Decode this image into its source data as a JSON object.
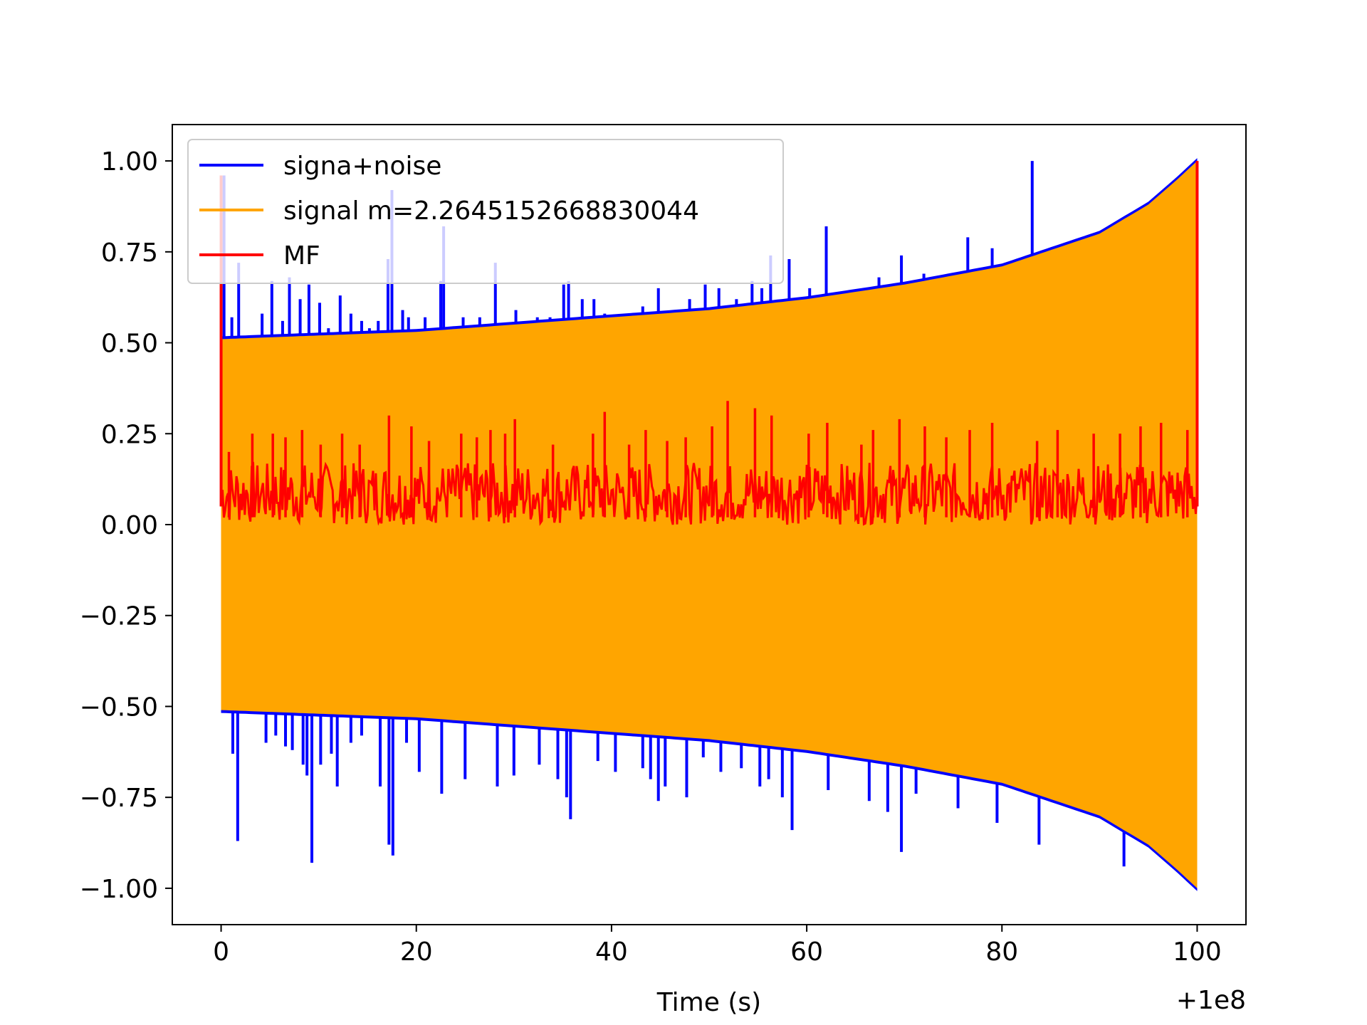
{
  "chart_data": {
    "type": "line",
    "title": "",
    "xlabel": "Time (s)",
    "ylabel": "",
    "x_offset_label": "+1e8",
    "xlim": [
      -5,
      105
    ],
    "ylim": [
      -1.1,
      1.1
    ],
    "x_ticks": [
      0,
      20,
      40,
      60,
      80,
      100
    ],
    "x_tick_labels": [
      "0",
      "20",
      "40",
      "60",
      "80",
      "100"
    ],
    "y_ticks": [
      1.0,
      0.75,
      0.5,
      0.25,
      0.0,
      -0.25,
      -0.5,
      -0.75,
      -1.0
    ],
    "y_tick_labels": [
      "1.00",
      "0.75",
      "0.50",
      "0.25",
      "0.00",
      "−0.25",
      "−0.50",
      "−0.75",
      "−1.00"
    ],
    "grid": false,
    "legend_position": "top-left",
    "series": [
      {
        "name": "signa+noise",
        "color": "#0000ff",
        "envelope_time": [
          0,
          10,
          20,
          30,
          40,
          50,
          60,
          70,
          80,
          90,
          95,
          98,
          100
        ],
        "envelope_upper": [
          0.51,
          0.52,
          0.53,
          0.55,
          0.57,
          0.59,
          0.62,
          0.66,
          0.71,
          0.8,
          0.88,
          0.95,
          1.0
        ],
        "envelope_lower": [
          -0.51,
          -0.52,
          -0.53,
          -0.55,
          -0.57,
          -0.59,
          -0.62,
          -0.66,
          -0.71,
          -0.8,
          -0.88,
          -0.95,
          -1.0
        ],
        "peaks_positive": [
          [
            0.3,
            0.96
          ],
          [
            1.1,
            0.57
          ],
          [
            1.8,
            0.72
          ],
          [
            3.0,
            0.52
          ],
          [
            4.2,
            0.58
          ],
          [
            5.2,
            0.67
          ],
          [
            6.3,
            0.56
          ],
          [
            7.0,
            0.68
          ],
          [
            8.1,
            0.62
          ],
          [
            9.0,
            0.66
          ],
          [
            10.1,
            0.61
          ],
          [
            11.0,
            0.54
          ],
          [
            12.2,
            0.63
          ],
          [
            13.3,
            0.58
          ],
          [
            14.4,
            0.56
          ],
          [
            15.2,
            0.54
          ],
          [
            16.1,
            0.56
          ],
          [
            17.1,
            0.73
          ],
          [
            17.5,
            0.92
          ],
          [
            18.6,
            0.59
          ],
          [
            19.2,
            0.57
          ],
          [
            20.9,
            0.57
          ],
          [
            22.5,
            0.67
          ],
          [
            22.8,
            0.82
          ],
          [
            24.8,
            0.57
          ],
          [
            26.5,
            0.57
          ],
          [
            28.1,
            0.72
          ],
          [
            29.3,
            0.55
          ],
          [
            30.2,
            0.59
          ],
          [
            32.4,
            0.57
          ],
          [
            33.7,
            0.57
          ],
          [
            35.1,
            0.66
          ],
          [
            35.6,
            0.67
          ],
          [
            37.0,
            0.62
          ],
          [
            38.2,
            0.62
          ],
          [
            39.3,
            0.58
          ],
          [
            40.7,
            0.57
          ],
          [
            42.1,
            0.56
          ],
          [
            43.2,
            0.6
          ],
          [
            44.8,
            0.65
          ],
          [
            46.7,
            0.58
          ],
          [
            48.0,
            0.62
          ],
          [
            49.6,
            0.66
          ],
          [
            51.0,
            0.65
          ],
          [
            52.8,
            0.62
          ],
          [
            54.4,
            0.67
          ],
          [
            55.4,
            0.65
          ],
          [
            56.3,
            0.74
          ],
          [
            58.2,
            0.73
          ],
          [
            60.3,
            0.65
          ],
          [
            62.0,
            0.82
          ],
          [
            65.0,
            0.62
          ],
          [
            67.4,
            0.68
          ],
          [
            69.7,
            0.74
          ],
          [
            72.0,
            0.69
          ],
          [
            76.5,
            0.79
          ],
          [
            79.0,
            0.76
          ],
          [
            83.1,
            1.0
          ]
        ],
        "peaks_negative": [
          [
            1.2,
            -0.63
          ],
          [
            1.7,
            -0.87
          ],
          [
            4.6,
            -0.6
          ],
          [
            5.6,
            -0.58
          ],
          [
            6.6,
            -0.61
          ],
          [
            7.3,
            -0.62
          ],
          [
            8.4,
            -0.66
          ],
          [
            8.8,
            -0.69
          ],
          [
            9.3,
            -0.93
          ],
          [
            10.2,
            -0.66
          ],
          [
            11.3,
            -0.63
          ],
          [
            11.9,
            -0.72
          ],
          [
            13.3,
            -0.6
          ],
          [
            14.4,
            -0.58
          ],
          [
            16.3,
            -0.72
          ],
          [
            17.2,
            -0.88
          ],
          [
            17.6,
            -0.91
          ],
          [
            19.0,
            -0.6
          ],
          [
            20.3,
            -0.68
          ],
          [
            22.6,
            -0.74
          ],
          [
            25.0,
            -0.7
          ],
          [
            28.3,
            -0.72
          ],
          [
            30.0,
            -0.69
          ],
          [
            32.6,
            -0.66
          ],
          [
            34.5,
            -0.7
          ],
          [
            35.4,
            -0.75
          ],
          [
            35.8,
            -0.81
          ],
          [
            38.6,
            -0.65
          ],
          [
            40.4,
            -0.68
          ],
          [
            43.2,
            -0.67
          ],
          [
            44.0,
            -0.7
          ],
          [
            44.8,
            -0.76
          ],
          [
            45.5,
            -0.72
          ],
          [
            47.7,
            -0.75
          ],
          [
            49.4,
            -0.64
          ],
          [
            51.2,
            -0.68
          ],
          [
            53.3,
            -0.67
          ],
          [
            55.2,
            -0.72
          ],
          [
            56.1,
            -0.7
          ],
          [
            57.5,
            -0.75
          ],
          [
            58.5,
            -0.84
          ],
          [
            62.2,
            -0.73
          ],
          [
            66.4,
            -0.76
          ],
          [
            68.3,
            -0.79
          ],
          [
            69.7,
            -0.9
          ],
          [
            71.2,
            -0.74
          ],
          [
            75.5,
            -0.78
          ],
          [
            79.5,
            -0.82
          ],
          [
            83.8,
            -0.88
          ],
          [
            92.5,
            -0.94
          ]
        ]
      },
      {
        "name": "signal m=2.2645152668830044",
        "color": "#ffa500",
        "envelope_time": [
          0,
          10,
          20,
          30,
          40,
          50,
          60,
          70,
          80,
          90,
          95,
          98,
          100
        ],
        "envelope_upper": [
          0.51,
          0.52,
          0.53,
          0.55,
          0.57,
          0.59,
          0.62,
          0.66,
          0.71,
          0.8,
          0.88,
          0.95,
          1.0
        ],
        "envelope_lower": [
          -0.51,
          -0.52,
          -0.53,
          -0.55,
          -0.57,
          -0.59,
          -0.62,
          -0.66,
          -0.71,
          -0.8,
          -0.88,
          -0.95,
          -1.0
        ]
      },
      {
        "name": "MF",
        "color": "#ff0000",
        "start_value": 0.96,
        "end_value": 1.0,
        "band": [
          0.0,
          0.17
        ],
        "peaks": [
          [
            0.8,
            0.2
          ],
          [
            3.2,
            0.25
          ],
          [
            5.3,
            0.25
          ],
          [
            6.6,
            0.24
          ],
          [
            8.3,
            0.26
          ],
          [
            10.2,
            0.22
          ],
          [
            12.4,
            0.25
          ],
          [
            14.2,
            0.22
          ],
          [
            17.2,
            0.3
          ],
          [
            19.5,
            0.27
          ],
          [
            21.3,
            0.23
          ],
          [
            24.6,
            0.25
          ],
          [
            26.2,
            0.24
          ],
          [
            27.6,
            0.26
          ],
          [
            29.1,
            0.25
          ],
          [
            30.1,
            0.29
          ],
          [
            34.0,
            0.22
          ],
          [
            38.1,
            0.25
          ],
          [
            39.3,
            0.31
          ],
          [
            41.8,
            0.22
          ],
          [
            43.5,
            0.26
          ],
          [
            45.7,
            0.23
          ],
          [
            47.6,
            0.24
          ],
          [
            50.3,
            0.27
          ],
          [
            51.9,
            0.34
          ],
          [
            54.7,
            0.32
          ],
          [
            56.4,
            0.3
          ],
          [
            60.2,
            0.25
          ],
          [
            62.1,
            0.28
          ],
          [
            65.6,
            0.22
          ],
          [
            66.8,
            0.26
          ],
          [
            69.5,
            0.29
          ],
          [
            72.1,
            0.27
          ],
          [
            74.3,
            0.24
          ],
          [
            76.7,
            0.26
          ],
          [
            79.0,
            0.28
          ],
          [
            83.6,
            0.23
          ],
          [
            85.7,
            0.26
          ],
          [
            89.4,
            0.25
          ],
          [
            92.1,
            0.25
          ],
          [
            94.2,
            0.27
          ],
          [
            96.3,
            0.28
          ],
          [
            99.0,
            0.26
          ]
        ]
      }
    ]
  }
}
